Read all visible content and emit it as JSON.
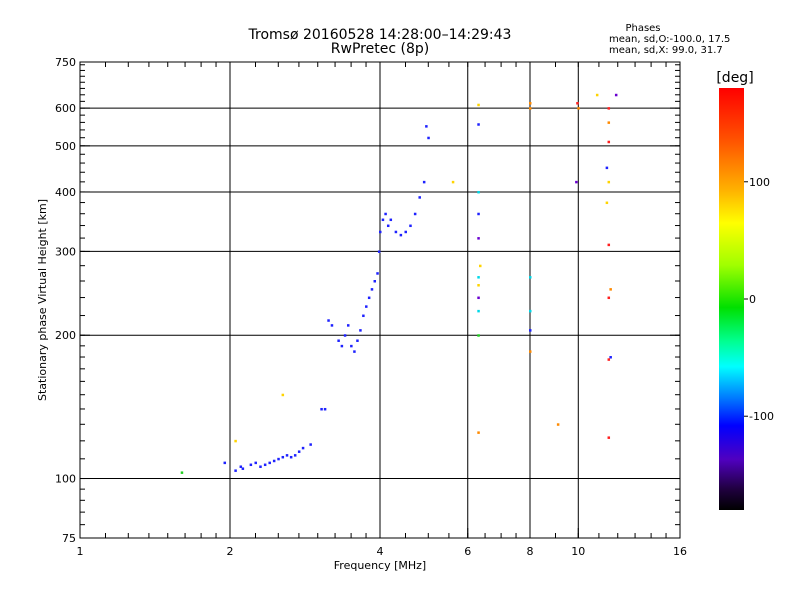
{
  "chart_data": {
    "type": "scatter",
    "title": "Tromsø 20160528 14:28:00–14:29:43",
    "subtitle": "RwPretec (8p)",
    "xlabel": "Frequency [MHz]",
    "ylabel": "Stationary phase Virtual Height [km]",
    "xscale": "log2",
    "yscale": "log",
    "xlim": [
      1,
      16
    ],
    "ylim": [
      75,
      750
    ],
    "x_ticks": [
      1,
      2,
      4,
      6,
      8,
      10,
      16
    ],
    "y_ticks": [
      75,
      100,
      200,
      300,
      400,
      500,
      600,
      750
    ],
    "phases_info": {
      "title": "Phases",
      "line_o": "mean, sd,O:-100.0, 17.5",
      "line_x": "mean, sd,X:  99.0, 31.7"
    },
    "colorbar": {
      "label": "[deg]",
      "range": [
        -180,
        180
      ],
      "ticks": [
        100,
        0,
        -100
      ]
    },
    "grid": true,
    "series": [
      {
        "points": [
          [
            1.6,
            103,
            "green"
          ],
          [
            1.95,
            108,
            "blue"
          ],
          [
            2.05,
            120,
            "yellow"
          ],
          [
            2.05,
            104,
            "blue"
          ],
          [
            2.1,
            106,
            "blue"
          ],
          [
            2.12,
            105,
            "blue"
          ],
          [
            2.2,
            107,
            "blue"
          ],
          [
            2.25,
            108,
            "blue"
          ],
          [
            2.3,
            106,
            "blue"
          ],
          [
            2.35,
            107,
            "blue"
          ],
          [
            2.4,
            108,
            "blue"
          ],
          [
            2.45,
            109,
            "blue"
          ],
          [
            2.5,
            110,
            "blue"
          ],
          [
            2.55,
            111,
            "blue"
          ],
          [
            2.6,
            112,
            "blue"
          ],
          [
            2.65,
            111,
            "blue"
          ],
          [
            2.7,
            112,
            "blue"
          ],
          [
            2.75,
            114,
            "blue"
          ],
          [
            2.8,
            116,
            "blue"
          ],
          [
            2.9,
            118,
            "blue"
          ],
          [
            2.55,
            150,
            "yellow"
          ],
          [
            3.05,
            140,
            "blue"
          ],
          [
            3.1,
            140,
            "blue"
          ],
          [
            3.15,
            215,
            "blue"
          ],
          [
            3.2,
            210,
            "blue"
          ],
          [
            3.3,
            195,
            "blue"
          ],
          [
            3.35,
            190,
            "blue"
          ],
          [
            3.4,
            200,
            "blue"
          ],
          [
            3.45,
            210,
            "blue"
          ],
          [
            3.5,
            190,
            "blue"
          ],
          [
            3.55,
            185,
            "blue"
          ],
          [
            3.6,
            195,
            "blue"
          ],
          [
            3.65,
            205,
            "blue"
          ],
          [
            3.7,
            220,
            "blue"
          ],
          [
            3.75,
            230,
            "blue"
          ],
          [
            3.8,
            240,
            "blue"
          ],
          [
            3.85,
            250,
            "blue"
          ],
          [
            3.9,
            260,
            "blue"
          ],
          [
            3.95,
            270,
            "blue"
          ],
          [
            3.98,
            300,
            "blue"
          ],
          [
            4.0,
            330,
            "blue"
          ],
          [
            4.05,
            350,
            "blue"
          ],
          [
            4.1,
            360,
            "blue"
          ],
          [
            4.15,
            340,
            "blue"
          ],
          [
            4.2,
            350,
            "blue"
          ],
          [
            4.3,
            330,
            "blue"
          ],
          [
            4.4,
            325,
            "blue"
          ],
          [
            4.5,
            330,
            "blue"
          ],
          [
            4.6,
            340,
            "blue"
          ],
          [
            4.7,
            360,
            "blue"
          ],
          [
            4.8,
            390,
            "blue"
          ],
          [
            4.9,
            420,
            "blue"
          ],
          [
            4.95,
            550,
            "blue"
          ],
          [
            5.0,
            520,
            "blue"
          ],
          [
            5.6,
            420,
            "yellow"
          ],
          [
            6.3,
            610,
            "yellow"
          ],
          [
            6.3,
            555,
            "blue"
          ],
          [
            6.3,
            400,
            "cyan"
          ],
          [
            6.3,
            360,
            "blue"
          ],
          [
            6.3,
            320,
            "violet"
          ],
          [
            6.35,
            280,
            "yellow"
          ],
          [
            6.3,
            265,
            "cyan"
          ],
          [
            6.3,
            255,
            "yellow"
          ],
          [
            6.3,
            240,
            "violet"
          ],
          [
            6.3,
            225,
            "cyan"
          ],
          [
            6.3,
            200,
            "green"
          ],
          [
            6.3,
            125,
            "orange"
          ],
          [
            8.0,
            615,
            "orange"
          ],
          [
            8.0,
            600,
            "orange"
          ],
          [
            8.0,
            265,
            "cyan"
          ],
          [
            8.0,
            225,
            "cyan"
          ],
          [
            8.0,
            205,
            "blue"
          ],
          [
            8.0,
            185,
            "orange"
          ],
          [
            9.1,
            130,
            "orange"
          ],
          [
            9.9,
            420,
            "violet"
          ],
          [
            9.95,
            615,
            "red"
          ],
          [
            10.0,
            600,
            "orange"
          ],
          [
            10.9,
            640,
            "yellow"
          ],
          [
            11.9,
            640,
            "violet"
          ],
          [
            11.5,
            600,
            "red"
          ],
          [
            11.5,
            560,
            "orange"
          ],
          [
            11.5,
            510,
            "red"
          ],
          [
            11.4,
            450,
            "blue"
          ],
          [
            11.5,
            420,
            "yellow"
          ],
          [
            11.4,
            380,
            "yellow"
          ],
          [
            11.5,
            310,
            "red"
          ],
          [
            11.6,
            250,
            "orange"
          ],
          [
            11.5,
            240,
            "red"
          ],
          [
            11.6,
            180,
            "blue"
          ],
          [
            11.5,
            178,
            "red"
          ],
          [
            11.5,
            122,
            "red"
          ]
        ]
      }
    ],
    "colors": {
      "blue": "#1e22ff",
      "green": "#22d022",
      "yellow": "#ffd400",
      "orange": "#ff8a00",
      "red": "#ff2020",
      "cyan": "#00d8e8",
      "violet": "#6a00d0"
    }
  }
}
